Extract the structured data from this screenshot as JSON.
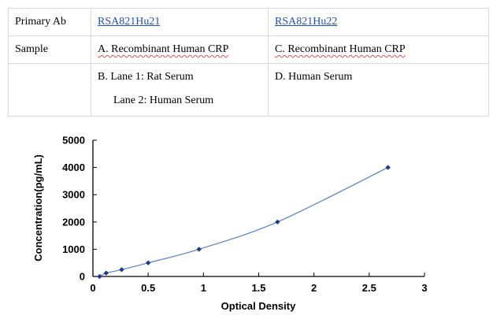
{
  "table": {
    "row1": {
      "label": "Primary Ab",
      "col2": "RSA821Hu21",
      "col3": "RSA821Hu22"
    },
    "row2": {
      "label": "Sample",
      "col2": "A. Recombinant Human CRP",
      "col3": "C. Recombinant Human CRP"
    },
    "row3": {
      "label": "",
      "col2_line1": "B. Lane 1: Rat Serum",
      "col2_line2": "Lane 2: Human Serum",
      "col3": "D. Human Serum"
    }
  },
  "colors": {
    "link": "#1f4fbf",
    "line": "#5a7fbf",
    "marker": "#1a3a8a"
  },
  "chart_data": {
    "type": "line",
    "title": "",
    "xlabel": "Optical Density",
    "ylabel": "Concentration(pg/mL)",
    "xlim": [
      0,
      3
    ],
    "ylim": [
      0,
      5000
    ],
    "x_ticks": [
      "0",
      "0.5",
      "1",
      "1.5",
      "2",
      "2.5",
      "3"
    ],
    "y_ticks": [
      "0",
      "1000",
      "2000",
      "3000",
      "4000",
      "5000"
    ],
    "grid": false,
    "series": [
      {
        "x": [
          0.06,
          0.12,
          0.26,
          0.5,
          0.96,
          1.67,
          2.67
        ],
        "y": [
          0,
          125,
          250,
          500,
          1000,
          2000,
          4000
        ]
      }
    ]
  }
}
